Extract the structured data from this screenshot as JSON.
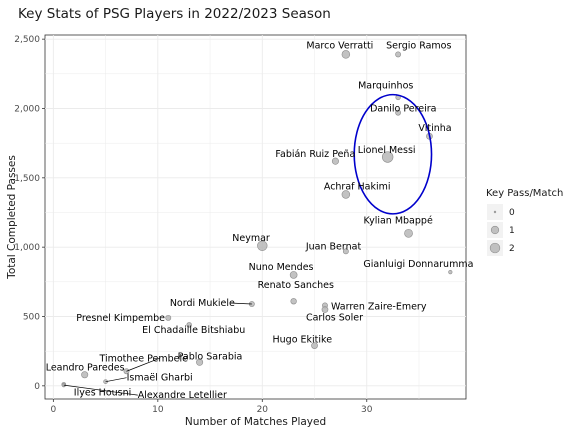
{
  "chart_data": {
    "type": "scatter",
    "title": "Key Stats of PSG Players in 2022/2023 Season",
    "xlabel": "Number of Matches Played",
    "ylabel": "Total Completed Passes",
    "xlim": [
      -0.8,
      39.5
    ],
    "ylim": [
      -95,
      2530
    ],
    "x_ticks": [
      0,
      10,
      20,
      30
    ],
    "y_ticks": [
      0,
      500,
      1000,
      1500,
      2000,
      2500
    ],
    "y_tick_labels": [
      "0",
      "500",
      "1,000",
      "1,500",
      "2,000",
      "2,500"
    ],
    "grid": true,
    "legend": {
      "title": "Key Pass/Match",
      "placement": "right",
      "entries": [
        {
          "label": "0",
          "size": 0
        },
        {
          "label": "1",
          "size": 1
        },
        {
          "label": "2",
          "size": 2
        }
      ]
    },
    "points": [
      {
        "name": "Marco Verratti",
        "x": 28,
        "y": 2390,
        "size": 1.1
      },
      {
        "name": "Sergio Ramos",
        "x": 33,
        "y": 2390,
        "size": 0.3
      },
      {
        "name": "Marquinhos",
        "x": 33,
        "y": 2080,
        "size": 0.2
      },
      {
        "name": "Danilo Pereira",
        "x": 33,
        "y": 1970,
        "size": 0.3
      },
      {
        "name": "Vitinha",
        "x": 36,
        "y": 1800,
        "size": 0.5
      },
      {
        "name": "Lionel Messi",
        "x": 32,
        "y": 1650,
        "size": 2.6
      },
      {
        "name": "Fabián Ruiz Peña",
        "x": 27,
        "y": 1620,
        "size": 0.6
      },
      {
        "name": "Achraf Hakimi",
        "x": 28,
        "y": 1380,
        "size": 1.1
      },
      {
        "name": "Kylian Mbappé",
        "x": 34,
        "y": 1100,
        "size": 1.2
      },
      {
        "name": "Neymar",
        "x": 20,
        "y": 1010,
        "size": 2.0
      },
      {
        "name": "Juan Bernat",
        "x": 28,
        "y": 970,
        "size": 0.3
      },
      {
        "name": "Gianluigi Donnarumma",
        "x": 38,
        "y": 820,
        "size": 0.05
      },
      {
        "name": "Nuno Mendes",
        "x": 23,
        "y": 800,
        "size": 0.8
      },
      {
        "name": "Renato Sanches",
        "x": 23,
        "y": 610,
        "size": 0.4
      },
      {
        "name": "Nordi Mukiele",
        "x": 19,
        "y": 590,
        "size": 0.3
      },
      {
        "name": "Warren Zaire-Emery",
        "x": 26,
        "y": 580,
        "size": 0.3
      },
      {
        "name": "Carlos Soler",
        "x": 26,
        "y": 550,
        "size": 0.5
      },
      {
        "name": "Presnel Kimpembe",
        "x": 11,
        "y": 490,
        "size": 0.3
      },
      {
        "name": "El Chadaille Bitshiabu",
        "x": 13,
        "y": 440,
        "size": 0.2
      },
      {
        "name": "Hugo Ekitike",
        "x": 25,
        "y": 290,
        "size": 0.5
      },
      {
        "name": "Pablo Sarabia",
        "x": 14,
        "y": 170,
        "size": 0.6
      },
      {
        "name": "Timothee Pembele",
        "x": 7,
        "y": 105,
        "size": 0.3
      },
      {
        "name": "Leandro Paredes",
        "x": 3,
        "y": 80,
        "size": 0.6
      },
      {
        "name": "Ismaël Gharbi",
        "x": 5,
        "y": 30,
        "size": 0.1
      },
      {
        "name": "Ilyes Housni",
        "x": 1,
        "y": 10,
        "size": 0.1
      },
      {
        "name": "Alexandre Letellier",
        "x": 1,
        "y": 5,
        "size": 0.05
      }
    ],
    "annotation": {
      "shape": "circle",
      "color": "#0000cc",
      "center_x": 32.5,
      "center_y": 1670,
      "radius_x": 3.7,
      "radius_y": 430
    }
  }
}
